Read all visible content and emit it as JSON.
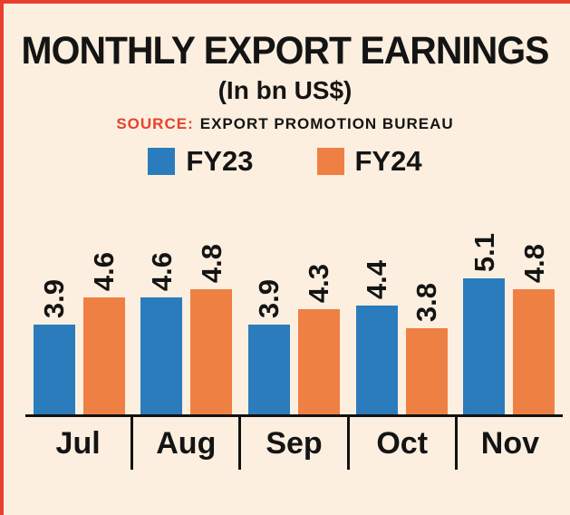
{
  "page": {
    "background_color": "#fcefdf",
    "accent_red": "#e8402d",
    "axis_color": "#111111"
  },
  "header": {
    "title": "MONTHLY EXPORT EARNINGS",
    "subtitle": "(In bn US$)",
    "source_label": "SOURCE:",
    "source_value": "EXPORT PROMOTION BUREAU"
  },
  "legend": [
    {
      "label": "FY23",
      "color": "#2b7cbc"
    },
    {
      "label": "FY24",
      "color": "#ef8043"
    }
  ],
  "chart_data": {
    "type": "bar",
    "title": "MONTHLY EXPORT EARNINGS",
    "subtitle": "(In bn US$)",
    "unit": "bn US$",
    "source": "EXPORT PROMOTION BUREAU",
    "categories": [
      "Jul",
      "Aug",
      "Sep",
      "Oct",
      "Nov"
    ],
    "series": [
      {
        "name": "FY23",
        "color": "#2b7cbc",
        "values": [
          3.9,
          4.6,
          3.9,
          4.4,
          5.1
        ]
      },
      {
        "name": "FY24",
        "color": "#ef8043",
        "values": [
          4.6,
          4.8,
          4.3,
          3.8,
          4.8
        ]
      }
    ],
    "legend_position": "top",
    "grid": false,
    "value_labels": "rotated-90-above-bars",
    "ylim_visual_baseline": 1.6
  }
}
